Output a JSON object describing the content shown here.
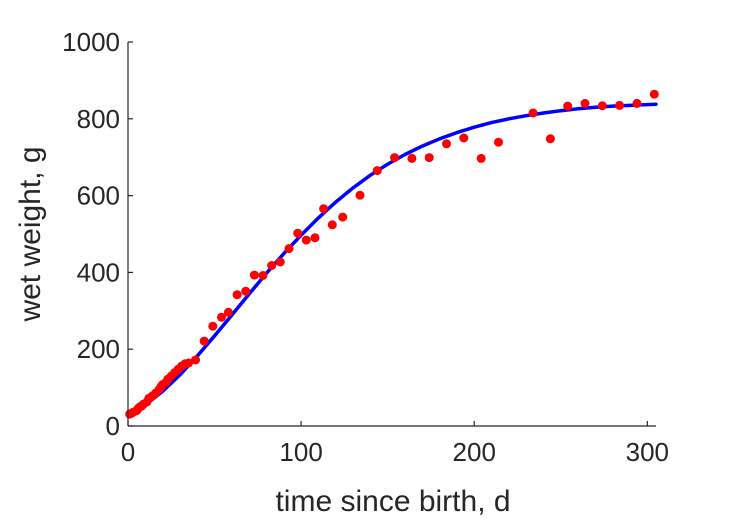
{
  "chart_data": {
    "type": "scatter",
    "xlabel": "time since birth, d",
    "ylabel": "wet weight, g",
    "xlim": [
      0,
      305
    ],
    "ylim": [
      0,
      1000
    ],
    "xticks": [
      0,
      100,
      200,
      300
    ],
    "yticks": [
      0,
      200,
      400,
      600,
      800,
      1000
    ],
    "grid": false,
    "colors": {
      "points": "#ff0000",
      "fit": "#0000ff"
    },
    "series": [
      {
        "type": "scatter",
        "points": [
          [
            1,
            31
          ],
          [
            2,
            33
          ],
          [
            3,
            36
          ],
          [
            5,
            40
          ],
          [
            6,
            46
          ],
          [
            7,
            50
          ],
          [
            8,
            52
          ],
          [
            9,
            57
          ],
          [
            11,
            63
          ],
          [
            12,
            72
          ],
          [
            14,
            78
          ],
          [
            16,
            86
          ],
          [
            18,
            95
          ],
          [
            19,
            102
          ],
          [
            20,
            108
          ],
          [
            22,
            114
          ],
          [
            23,
            122
          ],
          [
            25,
            130
          ],
          [
            27,
            139
          ],
          [
            29,
            148
          ],
          [
            31,
            156
          ],
          [
            33,
            162
          ],
          [
            35,
            164
          ],
          [
            39,
            172
          ],
          [
            44,
            221
          ],
          [
            49,
            260
          ],
          [
            54,
            283
          ],
          [
            58,
            296
          ],
          [
            63,
            342
          ],
          [
            68,
            351
          ],
          [
            73,
            393
          ],
          [
            78,
            392
          ],
          [
            83,
            418
          ],
          [
            88,
            427
          ],
          [
            93,
            462
          ],
          [
            98,
            502
          ],
          [
            103,
            484
          ],
          [
            108,
            490
          ],
          [
            113,
            566
          ],
          [
            118,
            524
          ],
          [
            124,
            544
          ],
          [
            134,
            601
          ],
          [
            144,
            665
          ],
          [
            154,
            699
          ],
          [
            164,
            697
          ],
          [
            174,
            699
          ],
          [
            184,
            735
          ],
          [
            194,
            750
          ],
          [
            204,
            697
          ],
          [
            214,
            739
          ],
          [
            234,
            815
          ],
          [
            244,
            748
          ],
          [
            254,
            833
          ],
          [
            264,
            840
          ],
          [
            274,
            834
          ],
          [
            284,
            835
          ],
          [
            294,
            840
          ],
          [
            304,
            864
          ]
        ]
      },
      {
        "type": "line",
        "points": [
          [
            0,
            30
          ],
          [
            10,
            55
          ],
          [
            20,
            90
          ],
          [
            30,
            133
          ],
          [
            40,
            182
          ],
          [
            50,
            235
          ],
          [
            60,
            289
          ],
          [
            70,
            344
          ],
          [
            80,
            398
          ],
          [
            90,
            449
          ],
          [
            100,
            497
          ],
          [
            110,
            542
          ],
          [
            120,
            583
          ],
          [
            130,
            620
          ],
          [
            140,
            653
          ],
          [
            150,
            682
          ],
          [
            160,
            707
          ],
          [
            170,
            729
          ],
          [
            180,
            748
          ],
          [
            190,
            764
          ],
          [
            200,
            778
          ],
          [
            210,
            790
          ],
          [
            220,
            800
          ],
          [
            230,
            808
          ],
          [
            240,
            815
          ],
          [
            250,
            821
          ],
          [
            260,
            826
          ],
          [
            270,
            830
          ],
          [
            280,
            833
          ],
          [
            290,
            835
          ],
          [
            300,
            837
          ],
          [
            305,
            838
          ]
        ]
      }
    ]
  }
}
